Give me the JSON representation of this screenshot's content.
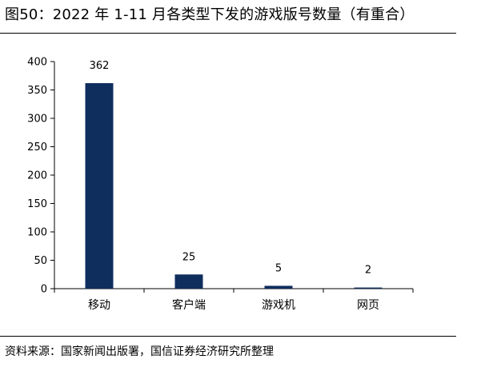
{
  "title": "图50：2022 年 1-11 月各类型下发的游戏版号数量（有重合）",
  "source": "资料来源：国家新闻出版署，国信证券经济研究所整理",
  "colors": {
    "bar": "#0f2e5e",
    "axis": "#000000"
  },
  "chart_data": {
    "type": "bar",
    "title": "图50：2022 年 1-11 月各类型下发的游戏版号数量（有重合）",
    "categories": [
      "移动",
      "客户端",
      "游戏机",
      "网页"
    ],
    "values": [
      362,
      25,
      5,
      2
    ],
    "data_labels": [
      "362",
      "25",
      "5",
      "2"
    ],
    "ylim": [
      0,
      400
    ],
    "yticks": [
      0,
      50,
      100,
      150,
      200,
      250,
      300,
      350,
      400
    ],
    "ytick_labels": [
      "0",
      "50",
      "100",
      "150",
      "200",
      "250",
      "300",
      "350",
      "400"
    ],
    "xlabel": "",
    "ylabel": "",
    "grid": false,
    "legend": "none"
  }
}
